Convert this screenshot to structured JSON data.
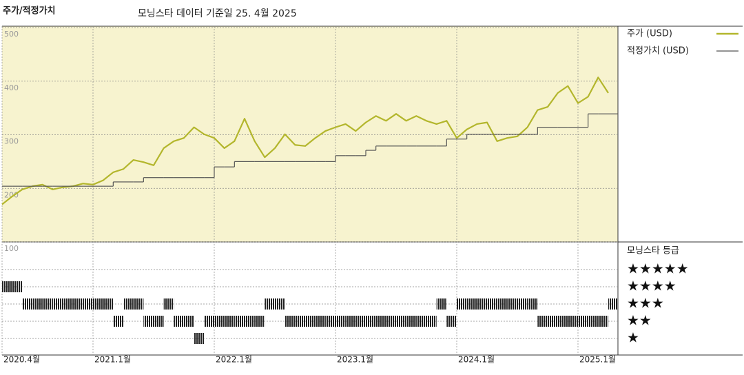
{
  "chart_data": {
    "type": "line",
    "title": "주가/적정가치",
    "subtitle": "모닝스타 데이터 기준일 25. 4월 2025",
    "x": [
      "2020-04",
      "2020-05",
      "2020-06",
      "2020-07",
      "2020-08",
      "2020-09",
      "2020-10",
      "2020-11",
      "2020-12",
      "2021-01",
      "2021-02",
      "2021-03",
      "2021-04",
      "2021-05",
      "2021-06",
      "2021-07",
      "2021-08",
      "2021-09",
      "2021-10",
      "2021-11",
      "2021-12",
      "2022-01",
      "2022-02",
      "2022-03",
      "2022-04",
      "2022-05",
      "2022-06",
      "2022-07",
      "2022-08",
      "2022-09",
      "2022-10",
      "2022-11",
      "2022-12",
      "2023-01",
      "2023-02",
      "2023-03",
      "2023-04",
      "2023-05",
      "2023-06",
      "2023-07",
      "2023-08",
      "2023-09",
      "2023-10",
      "2023-11",
      "2023-12",
      "2024-01",
      "2024-02",
      "2024-03",
      "2024-04",
      "2024-05",
      "2024-06",
      "2024-07",
      "2024-08",
      "2024-09",
      "2024-10",
      "2024-11",
      "2024-12",
      "2025-01",
      "2025-02",
      "2025-03",
      "2025-04"
    ],
    "xticks": [
      {
        "value": "2020-04",
        "label": "2020.4월"
      },
      {
        "value": "2021-01",
        "label": "2021.1월"
      },
      {
        "value": "2022-01",
        "label": "2022.1월"
      },
      {
        "value": "2023-01",
        "label": "2023.1월"
      },
      {
        "value": "2024-01",
        "label": "2024.1월"
      },
      {
        "value": "2025-01",
        "label": "2025.1월"
      }
    ],
    "ylim": [
      100,
      500
    ],
    "yticks": [
      100,
      200,
      300,
      400,
      500
    ],
    "grid": true,
    "series": [
      {
        "name": "주가 (USD)",
        "color": "#b3b62c",
        "values": [
          170,
          185,
          198,
          204,
          207,
          198,
          202,
          204,
          209,
          207,
          215,
          230,
          236,
          253,
          249,
          243,
          275,
          288,
          294,
          314,
          301,
          294,
          275,
          288,
          330,
          288,
          258,
          275,
          301,
          281,
          279,
          294,
          307,
          314,
          320,
          307,
          323,
          335,
          326,
          339,
          326,
          335,
          326,
          320,
          326,
          294,
          310,
          320,
          323,
          288,
          294,
          297,
          314,
          346,
          352,
          378,
          391,
          359,
          371,
          407,
          378
        ]
      },
      {
        "name": "적정가치 (USD)",
        "color": "#555555",
        "step": true,
        "values": [
          204,
          204,
          204,
          204,
          204,
          204,
          204,
          204,
          204,
          204,
          204,
          212,
          212,
          212,
          220,
          220,
          220,
          220,
          220,
          220,
          220,
          240,
          240,
          250,
          250,
          250,
          250,
          250,
          250,
          250,
          250,
          250,
          250,
          261,
          261,
          261,
          271,
          279,
          279,
          279,
          279,
          279,
          279,
          279,
          292,
          292,
          301,
          301,
          301,
          301,
          301,
          301,
          301,
          314,
          314,
          314,
          314,
          314,
          339,
          339,
          339
        ]
      }
    ],
    "rating": {
      "title": "모닝스타 등급",
      "levels": [
        "★",
        "★★",
        "★★★",
        "★★★★",
        "★★★★★"
      ],
      "values": [
        4,
        4,
        3,
        3,
        3,
        3,
        3,
        3,
        3,
        3,
        3,
        2,
        3,
        3,
        2,
        2,
        3,
        2,
        2,
        1,
        2,
        2,
        2,
        2,
        2,
        2,
        3,
        3,
        2,
        2,
        2,
        2,
        2,
        2,
        2,
        2,
        2,
        2,
        2,
        2,
        2,
        2,
        2,
        3,
        2,
        3,
        3,
        3,
        3,
        3,
        3,
        3,
        3,
        2,
        2,
        2,
        2,
        2,
        2,
        2,
        3
      ]
    }
  }
}
